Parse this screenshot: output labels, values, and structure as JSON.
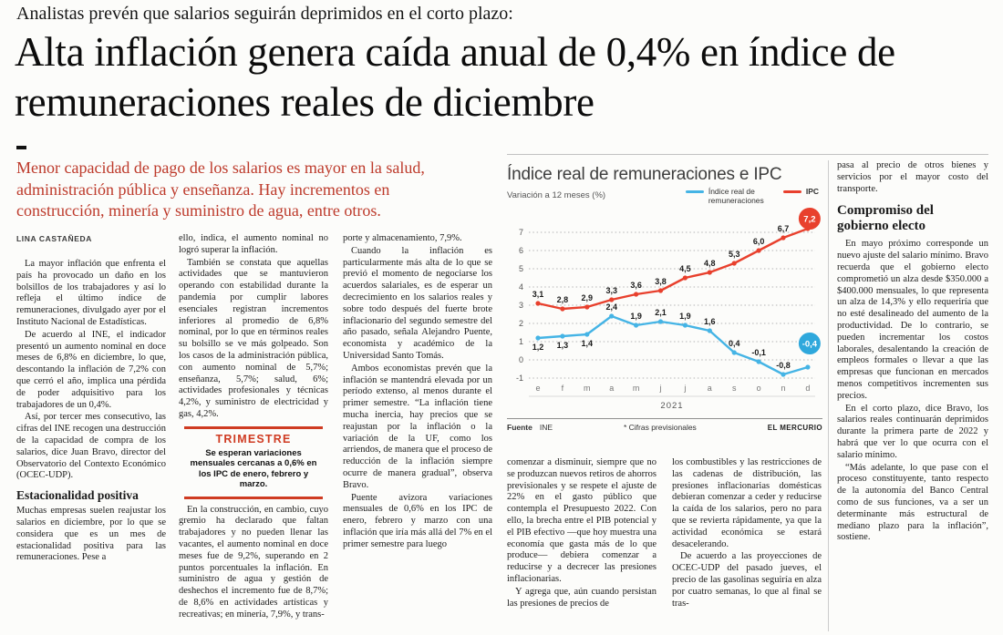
{
  "kicker": "Analistas prevén que salarios seguirán deprimidos en el corto plazo:",
  "headline": "Alta inflación genera caída anual de 0,4% en índice de remuneraciones reales de diciembre",
  "subhead": "Menor capacidad de pago de los salarios es mayor en la salud, administración pública y enseñanza. Hay incrementos en construcción, minería y suministro de agua, entre otros.",
  "byline": "LINA CASTAÑEDA",
  "article": {
    "col1": {
      "paras": [
        "La mayor inflación que enfrenta el país ha provocado un daño en los bolsillos de los trabajadores y así lo refleja el último índice de remuneraciones, divulgado ayer por el Instituto Nacional de Estadísticas.",
        "De acuerdo al INE, el indicador presentó un aumento nominal en doce meses de 6,8% en diciembre, lo que, descontando la inflación de 7,2% con que cerró el año, implica una pérdida de poder adquisitivo para los trabajadores de un 0,4%.",
        "Así, por tercer mes consecutivo, las cifras del INE recogen una destrucción de la capacidad de compra de los salarios, dice Juan Bravo, director del Observatorio del Contexto Económico (OCEC-UDP)."
      ],
      "heading": "Estacionalidad positiva",
      "paras2": [
        "Muchas empresas suelen reajustar los salarios en diciembre, por lo que se considera que es un mes de estacionalidad positiva para las remuneraciones. Pese a"
      ]
    },
    "col2": {
      "paras": [
        "ello, indica, el aumento nominal no logró superar la inflación.",
        "También se constata que aquellas actividades que se mantuvieron operando con estabilidad durante la pandemia por cumplir labores esenciales registran incrementos inferiores al promedio de 6,8% nominal, por lo que en términos reales su bolsillo se ve más golpeado. Son los casos de la administración pública, con aumento nominal de 5,7%; enseñanza, 5,7%; salud, 6%; actividades profesionales y técnicas 4,2%, y suministro de electricidad y gas, 4,2%."
      ],
      "paras2": [
        "En la construcción, en cambio, cuyo gremio ha declarado que faltan trabajadores y no pueden llenar las vacantes, el aumento nominal en doce meses fue de 9,2%, superando en 2 puntos porcentuales la inflación. En suministro de agua y gestión de deshechos el incremento fue de 8,7%; de 8,6% en actividades artísticas y recreativas; en minería, 7,9%, y trans-"
      ]
    },
    "col3": {
      "paras": [
        "porte y almacenamiento, 7,9%.",
        "Cuando la inflación es particularmente más alta de lo que se previó el momento de negociarse los acuerdos salariales, es de esperar un decrecimiento en los salarios reales y sobre todo después del fuerte brote inflacionario del segundo semestre del año pasado, señala Alejandro Puente, economista y académico de la Universidad Santo Tomás.",
        "Ambos economistas prevén que la inflación se mantendrá elevada por un período extenso, al menos durante el primer semestre. “La inflación tiene mucha inercia, hay precios que se reajustan por la inflación o la variación de la UF, como los arriendos, de manera que el proceso de reducción de la inflación siempre ocurre de manera gradual”, observa Bravo.",
        "Puente avizora variaciones mensuales de 0,6% en los IPC de enero, febrero y marzo con una inflación que iría más allá del 7% en el primer semestre para luego"
      ]
    },
    "col4": {
      "paras": [
        "comenzar a disminuir, siempre que no se produzcan nuevos retiros de ahorros previsionales y se respete el ajuste de 22% en el gasto público que contempla el Presupuesto 2022. Con ello, la brecha entre el PIB potencial y el PIB efectivo —que hoy muestra una economía que gasta más de lo que produce— debiera comenzar a reducirse y a decrecer las presiones inflacionarias.",
        "Y agrega que, aún cuando persistan las presiones de precios de"
      ]
    },
    "col5": {
      "paras": [
        "los combustibles y las restricciones de las cadenas de distribución, las presiones inflacionarias domésticas debieran comenzar a ceder y reducirse la caída de los salarios, pero no para que se revierta rápidamente, ya que la actividad económica se estará desacelerando.",
        "De acuerdo a las proyecciones de OCEC-UDP del pasado jueves, el precio de las gasolinas seguiría en alza por cuatro semanas, lo que al final se tras-"
      ]
    },
    "col6": {
      "lead": "pasa al precio de otros bienes y servicios por el mayor costo del transporte.",
      "heading": "Compromiso del gobierno electo",
      "paras": [
        "En mayo próximo corresponde un nuevo ajuste del salario mínimo. Bravo recuerda que el gobierno electo comprometió un alza desde $350.000 a $400.000 mensuales, lo que representa un alza de 14,3% y ello requeriría que no esté desalineado del aumento de la productividad. De lo contrario, se pueden incrementar los costos laborales, desalentando la creación de empleos formales o llevar a que las empresas que funcionan en mercados menos competitivos incrementen sus precios.",
        "En el corto plazo, dice Bravo, los salarios reales continuarán deprimidos durante la primera parte de 2022 y habrá que ver lo que ocurra con el salario mínimo.",
        "“Más adelante, lo que pase con el proceso constituyente, tanto respecto de la autonomía del Banco Central como de sus funciones, va a ser un determinante más estructural de mediano plazo para la inflación”, sostiene."
      ]
    }
  },
  "trimestre": {
    "title": "TRIMESTRE",
    "text": "Se esperan variaciones mensuales cercanas a 0,6% en los IPC de enero, febrero y marzo."
  },
  "chart_data": {
    "type": "line",
    "title": "Índice real de remuneraciones e IPC",
    "subtitle": "Variación a 12 meses (%)",
    "x": [
      "e",
      "f",
      "m",
      "a",
      "m",
      "j",
      "j",
      "a",
      "s",
      "o",
      "n",
      "d"
    ],
    "x_year": "2021",
    "ylim": [
      -1,
      7
    ],
    "yticks": [
      7,
      6,
      5,
      4,
      3,
      2,
      1,
      0,
      -1
    ],
    "grid": true,
    "legend_position": "top-right",
    "series": [
      {
        "name": "Índice real de remuneraciones",
        "color": "#45b4e5",
        "values": [
          1.2,
          1.3,
          1.4,
          2.4,
          1.9,
          2.1,
          1.9,
          1.6,
          0.4,
          -0.1,
          -0.8,
          -0.4
        ],
        "labels": [
          "1,2",
          "1,3",
          "1,4",
          "2,4",
          "1,9",
          "2,1",
          "1,9",
          "1,6",
          "0,4",
          "-0,1",
          "-0,8",
          "-0,4"
        ],
        "badge": {
          "text": "-0,4",
          "bg": "#2fa8dc"
        }
      },
      {
        "name": "IPC",
        "color": "#e8402d",
        "values": [
          3.1,
          2.8,
          2.9,
          3.3,
          3.6,
          3.8,
          4.5,
          4.8,
          5.3,
          6.0,
          6.7,
          7.2
        ],
        "labels": [
          "3,1",
          "2,8",
          "2,9",
          "3,3",
          "3,6",
          "3,8",
          "4,5",
          "4,8",
          "5,3",
          "6,0",
          "6,7",
          "7,2"
        ],
        "badge": {
          "text": "7,2",
          "bg": "#e8402d"
        }
      }
    ],
    "source_label": "Fuente",
    "source": "INE",
    "note": "* Cifras previsionales",
    "credit": "EL MERCURIO"
  }
}
